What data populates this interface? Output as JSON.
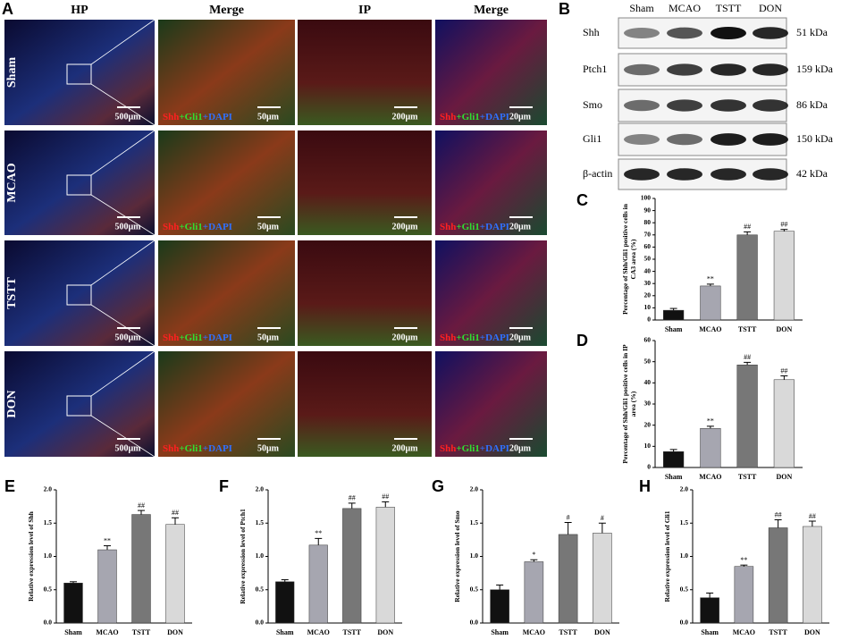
{
  "panel_a": {
    "label": "A",
    "columns": [
      "HP",
      "Merge",
      "IP",
      "Merge"
    ],
    "rows": [
      "Sham",
      "MCAO",
      "TSTT",
      "DON"
    ],
    "scale_bars": [
      "500μm",
      "50μm",
      "200μm",
      "20μm"
    ],
    "stain_label": [
      "Shh",
      "+Gli1",
      "+DAPI"
    ]
  },
  "panel_b": {
    "label": "B",
    "lanes": [
      "Sham",
      "MCAO",
      "TSTT",
      "DON"
    ],
    "proteins": [
      {
        "name": "Shh",
        "size": "51 kDa"
      },
      {
        "name": "Ptch1",
        "size": "159 kDa"
      },
      {
        "name": "Smo",
        "size": "86 kDa"
      },
      {
        "name": "Gli1",
        "size": "150 kDa"
      },
      {
        "name": "β-actin",
        "size": "42 kDa"
      }
    ]
  },
  "chart_data": [
    {
      "type": "bar",
      "panel": "C",
      "ylabel": "Percentage of Shh/Gli1 positive cells in CA3 area (%)",
      "categories": [
        "Sham",
        "MCAO",
        "TSTT",
        "DON"
      ],
      "values": [
        8,
        28,
        70,
        73
      ],
      "errors": [
        1.5,
        1.5,
        2.5,
        1.5
      ],
      "annotations": [
        null,
        "**",
        "##",
        "##"
      ],
      "colors": [
        "#111111",
        "#a6a6b0",
        "#777777",
        "#d9d9d9"
      ],
      "ylim": [
        0,
        100
      ],
      "yticks": [
        0,
        10,
        20,
        30,
        40,
        50,
        60,
        70,
        80,
        90,
        100
      ]
    },
    {
      "type": "bar",
      "panel": "D",
      "ylabel": "Percentage of Shh/Gli1 positive cells in IP area (%)",
      "categories": [
        "Sham",
        "MCAO",
        "TSTT",
        "DON"
      ],
      "values": [
        7.5,
        18.5,
        48.5,
        41.5
      ],
      "errors": [
        1,
        1,
        1.2,
        1.8
      ],
      "annotations": [
        null,
        "**",
        "##",
        "##"
      ],
      "colors": [
        "#111111",
        "#a6a6b0",
        "#777777",
        "#d9d9d9"
      ],
      "ylim": [
        0,
        60
      ],
      "yticks": [
        0,
        10,
        20,
        30,
        40,
        50,
        60
      ]
    },
    {
      "type": "bar",
      "panel": "E",
      "ylabel": "Relative expression level of Shh",
      "categories": [
        "Sham",
        "MCAO",
        "TSTT",
        "DON"
      ],
      "values": [
        0.6,
        1.1,
        1.63,
        1.48
      ],
      "errors": [
        0.02,
        0.06,
        0.06,
        0.1
      ],
      "annotations": [
        null,
        "**",
        "##",
        "##"
      ],
      "colors": [
        "#111111",
        "#a6a6b0",
        "#777777",
        "#d9d9d9"
      ],
      "ylim": [
        0,
        2
      ],
      "yticks": [
        {
          "value": 0,
          "label": "0.0"
        },
        0.5,
        {
          "value": 1,
          "label": "1.0"
        },
        1.5,
        {
          "value": 2,
          "label": "2.0"
        }
      ]
    },
    {
      "type": "bar",
      "panel": "F",
      "ylabel": "Relative expression level of Ptch1",
      "categories": [
        "Sham",
        "MCAO",
        "TSTT",
        "DON"
      ],
      "values": [
        0.62,
        1.17,
        1.72,
        1.74
      ],
      "errors": [
        0.03,
        0.1,
        0.08,
        0.08
      ],
      "annotations": [
        null,
        "**",
        "##",
        "##"
      ],
      "colors": [
        "#111111",
        "#a6a6b0",
        "#777777",
        "#d9d9d9"
      ],
      "ylim": [
        0,
        2
      ],
      "yticks": [
        {
          "value": 0,
          "label": "0.0"
        },
        0.5,
        {
          "value": 1,
          "label": "1.0"
        },
        1.5,
        {
          "value": 2,
          "label": "2.0"
        }
      ]
    },
    {
      "type": "bar",
      "panel": "G",
      "ylabel": "Relative expression level of Smo",
      "categories": [
        "Sham",
        "MCAO",
        "TSTT",
        "DON"
      ],
      "values": [
        0.5,
        0.92,
        1.33,
        1.35
      ],
      "errors": [
        0.07,
        0.03,
        0.18,
        0.15
      ],
      "annotations": [
        null,
        "*",
        "#",
        "#"
      ],
      "colors": [
        "#111111",
        "#a6a6b0",
        "#777777",
        "#d9d9d9"
      ],
      "ylim": [
        0,
        2
      ],
      "yticks": [
        {
          "value": 0,
          "label": "0.0"
        },
        0.5,
        {
          "value": 1,
          "label": "1.0"
        },
        1.5,
        {
          "value": 2,
          "label": "2.0"
        }
      ]
    },
    {
      "type": "bar",
      "panel": "H",
      "ylabel": "Relative expression level of Gli1",
      "categories": [
        "Sham",
        "MCAO",
        "TSTT",
        "DON"
      ],
      "values": [
        0.38,
        0.85,
        1.43,
        1.45
      ],
      "errors": [
        0.07,
        0.02,
        0.12,
        0.08
      ],
      "annotations": [
        null,
        "**",
        "##",
        "##"
      ],
      "colors": [
        "#111111",
        "#a6a6b0",
        "#777777",
        "#d9d9d9"
      ],
      "ylim": [
        0,
        2
      ],
      "yticks": [
        {
          "value": 0,
          "label": "0.0"
        },
        0.5,
        {
          "value": 1,
          "label": "1.0"
        },
        1.5,
        {
          "value": 2,
          "label": "2.0"
        }
      ]
    }
  ]
}
